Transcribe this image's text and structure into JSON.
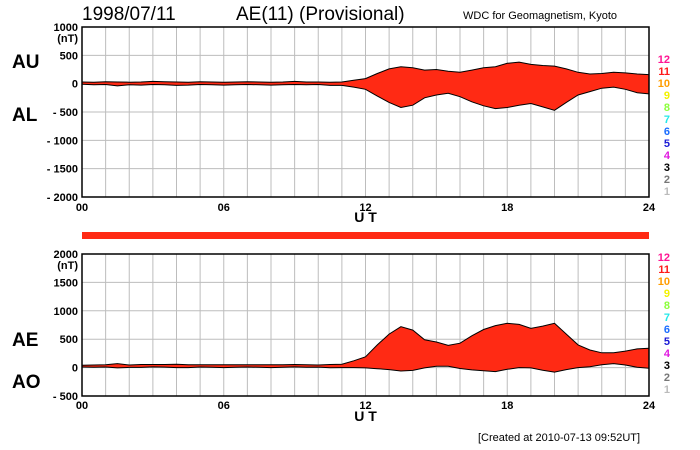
{
  "header": {
    "date": "1998/07/11",
    "title": "AE(11) (Provisional)",
    "org": "WDC for Geomagnetism, Kyoto"
  },
  "footer": {
    "created": "[Created at 2010-07-13 09:52UT]"
  },
  "colors": {
    "fill": "#ff2a14",
    "outline": "#000000",
    "grid": "#bdbdbd",
    "bar": "#ff2a14"
  },
  "chart_data": [
    {
      "type": "area",
      "name": "AU/AL",
      "ylabels": [
        "AU",
        "AL"
      ],
      "unit": "(nT)",
      "ylim": [
        -2000,
        1000
      ],
      "yticks": [
        1000,
        500,
        0,
        -500,
        -1000,
        -1500,
        -2000
      ],
      "ytick_labels": [
        "1000",
        "500",
        "0",
        "- 500",
        "- 1000",
        "- 1500",
        "- 2000"
      ],
      "xlim": [
        0,
        24
      ],
      "xticks": [
        0,
        6,
        12,
        18,
        24
      ],
      "xtick_labels": [
        "00",
        "06",
        "12",
        "18",
        "24"
      ],
      "xlabel": "U T",
      "grid": true,
      "x": [
        0,
        0.5,
        1,
        1.5,
        2,
        2.5,
        3,
        3.5,
        4,
        4.5,
        5,
        5.5,
        6,
        6.5,
        7,
        7.5,
        8,
        8.5,
        9,
        9.5,
        10,
        10.5,
        11,
        11.5,
        12,
        12.5,
        13,
        13.5,
        14,
        14.5,
        15,
        15.5,
        16,
        16.5,
        17,
        17.5,
        18,
        18.5,
        19,
        19.5,
        20,
        20.5,
        21,
        21.5,
        22,
        22.5,
        23,
        23.5,
        24
      ],
      "series": [
        {
          "name": "AU",
          "values": [
            30,
            25,
            35,
            30,
            25,
            30,
            40,
            35,
            30,
            25,
            35,
            30,
            25,
            30,
            35,
            30,
            25,
            30,
            40,
            30,
            30,
            25,
            30,
            60,
            90,
            180,
            260,
            300,
            280,
            240,
            250,
            220,
            200,
            240,
            280,
            300,
            360,
            380,
            340,
            320,
            310,
            260,
            200,
            170,
            180,
            200,
            190,
            170,
            160
          ]
        },
        {
          "name": "AL",
          "values": [
            -10,
            -20,
            -15,
            -40,
            -20,
            -25,
            -15,
            -20,
            -30,
            -25,
            -15,
            -20,
            -25,
            -20,
            -15,
            -20,
            -25,
            -20,
            -15,
            -20,
            -15,
            -30,
            -30,
            -60,
            -100,
            -220,
            -330,
            -420,
            -380,
            -250,
            -200,
            -170,
            -230,
            -320,
            -390,
            -440,
            -420,
            -380,
            -350,
            -410,
            -470,
            -330,
            -200,
            -140,
            -80,
            -60,
            -100,
            -160,
            -180
          ]
        }
      ],
      "satellite_numbers": [
        "12",
        "11",
        "10",
        "9",
        "8",
        "7",
        "6",
        "5",
        "4",
        "3",
        "2",
        "1"
      ],
      "satellite_colors": [
        "#ff1493",
        "#ff1a1a",
        "#ff9d00",
        "#f2f200",
        "#8cff3c",
        "#24e8e8",
        "#1a6cff",
        "#1a1ad6",
        "#e01ae0",
        "#000000",
        "#777777",
        "#bbbbbb"
      ]
    },
    {
      "type": "area",
      "name": "AE/AO",
      "ylabels": [
        "AE",
        "AO"
      ],
      "unit": "(nT)",
      "ylim": [
        -500,
        2000
      ],
      "yticks": [
        2000,
        1500,
        1000,
        500,
        0,
        -500
      ],
      "ytick_labels": [
        "2000",
        "1500",
        "1000",
        "500",
        "0",
        "- 500"
      ],
      "xlim": [
        0,
        24
      ],
      "xticks": [
        0,
        6,
        12,
        18,
        24
      ],
      "xtick_labels": [
        "00",
        "06",
        "12",
        "18",
        "24"
      ],
      "xlabel": "U T",
      "grid": true,
      "x": [
        0,
        0.5,
        1,
        1.5,
        2,
        2.5,
        3,
        3.5,
        4,
        4.5,
        5,
        5.5,
        6,
        6.5,
        7,
        7.5,
        8,
        8.5,
        9,
        9.5,
        10,
        10.5,
        11,
        11.5,
        12,
        12.5,
        13,
        13.5,
        14,
        14.5,
        15,
        15.5,
        16,
        16.5,
        17,
        17.5,
        18,
        18.5,
        19,
        19.5,
        20,
        20.5,
        21,
        21.5,
        22,
        22.5,
        23,
        23.5,
        24
      ],
      "series": [
        {
          "name": "AE",
          "values": [
            40,
            45,
            50,
            70,
            45,
            55,
            55,
            55,
            60,
            50,
            50,
            50,
            50,
            50,
            50,
            50,
            50,
            50,
            55,
            50,
            45,
            55,
            60,
            120,
            190,
            400,
            590,
            720,
            660,
            490,
            450,
            390,
            430,
            560,
            670,
            740,
            780,
            760,
            690,
            730,
            780,
            590,
            400,
            310,
            260,
            260,
            290,
            330,
            340
          ]
        },
        {
          "name": "AO",
          "values": [
            10,
            5,
            10,
            -5,
            3,
            3,
            13,
            8,
            0,
            0,
            10,
            5,
            0,
            5,
            10,
            5,
            0,
            5,
            13,
            5,
            8,
            -3,
            0,
            0,
            -5,
            -20,
            -35,
            -60,
            -50,
            -5,
            25,
            25,
            -15,
            -40,
            -55,
            -70,
            -30,
            0,
            -5,
            -45,
            -80,
            -35,
            0,
            15,
            50,
            70,
            45,
            5,
            -10
          ]
        }
      ],
      "satellite_numbers": [
        "12",
        "11",
        "10",
        "9",
        "8",
        "7",
        "6",
        "5",
        "4",
        "3",
        "2",
        "1"
      ],
      "satellite_colors": [
        "#ff1493",
        "#ff1a1a",
        "#ff9d00",
        "#f2f200",
        "#8cff3c",
        "#24e8e8",
        "#1a6cff",
        "#1a1ad6",
        "#e01ae0",
        "#000000",
        "#777777",
        "#bbbbbb"
      ]
    }
  ]
}
